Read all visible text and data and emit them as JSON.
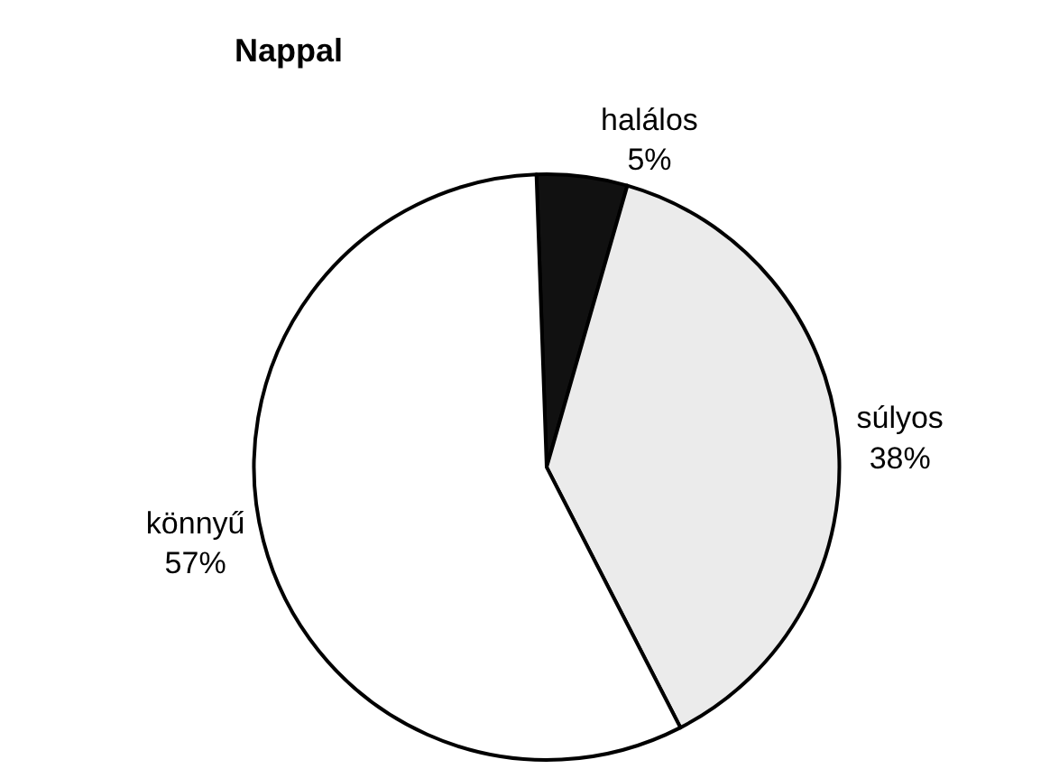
{
  "chart_data": {
    "type": "pie",
    "title": "Nappal",
    "categories": [
      "halálos",
      "súlyos",
      "könnyű"
    ],
    "values": [
      5,
      38,
      57
    ],
    "value_labels": [
      "5%",
      "38%",
      "57%"
    ],
    "colors": [
      "#111111",
      "#ebebeb",
      "#ffffff"
    ],
    "legend": false
  }
}
